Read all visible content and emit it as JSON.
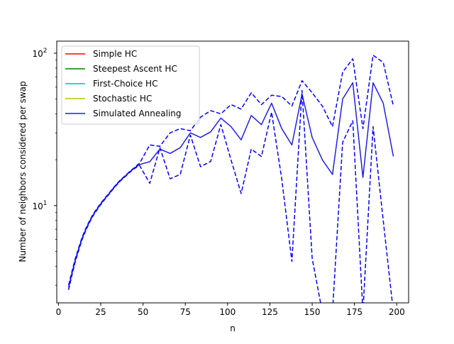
{
  "chart_data": {
    "type": "line",
    "title": "",
    "xlabel": "n",
    "ylabel": "Number of neighbors considered per swap",
    "xlim": [
      -1,
      207
    ],
    "ylim": [
      2.3,
      120
    ],
    "yscale": "log",
    "xticks": [
      0,
      25,
      50,
      75,
      100,
      125,
      150,
      175,
      200
    ],
    "xtick_labels": [
      "0",
      "25",
      "50",
      "75",
      "100",
      "125",
      "150",
      "175",
      "200"
    ],
    "yticks": [
      10,
      100
    ],
    "ytick_labels": [
      "10^1",
      "10^2"
    ],
    "ytick_base": "10",
    "ytick_exponents": [
      "1",
      "2"
    ],
    "grid": false,
    "legend_position": "upper-left",
    "series": [
      {
        "name": "Simple HC",
        "color": "#ff0000",
        "style": "solid",
        "x": [],
        "y": []
      },
      {
        "name": "Steepest Ascent HC",
        "color": "#008000",
        "style": "solid",
        "x": [],
        "y": []
      },
      {
        "name": "First-Choice HC",
        "color": "#00bfbf",
        "style": "solid",
        "x": [],
        "y": []
      },
      {
        "name": "Stochastic HC",
        "color": "#bfbf00",
        "style": "solid",
        "x": [],
        "y": []
      },
      {
        "name": "Simulated Annealing",
        "color": "#2020e0",
        "style": "solid",
        "x": [
          6,
          8,
          10,
          12,
          14,
          16,
          18,
          20,
          22,
          24,
          26,
          28,
          30,
          32,
          34,
          36,
          38,
          40,
          42,
          44,
          46,
          48,
          54,
          60,
          66,
          72,
          78,
          84,
          90,
          96,
          102,
          108,
          114,
          120,
          126,
          132,
          138,
          144,
          150,
          156,
          162,
          168,
          174,
          180,
          186,
          192,
          198
        ],
        "y": [
          2.9,
          3.6,
          4.4,
          5.2,
          6.1,
          6.9,
          7.7,
          8.5,
          9.2,
          9.9,
          10.6,
          11.3,
          12.0,
          12.8,
          13.6,
          14.4,
          15.1,
          15.8,
          16.6,
          17.3,
          18.0,
          18.6,
          19.4,
          23.5,
          22.0,
          24.0,
          30.0,
          28.0,
          30.5,
          37.5,
          33.0,
          27.0,
          39.0,
          34.0,
          47.0,
          32.0,
          25.0,
          54.0,
          28.0,
          20.0,
          16.0,
          50.0,
          64.0,
          15.3,
          64.0,
          47.0,
          21.0
        ]
      },
      {
        "name": "",
        "color": "#0000ff",
        "style": "dashed",
        "x": [
          6,
          8,
          10,
          12,
          14,
          16,
          18,
          20,
          22,
          24,
          26,
          28,
          30,
          32,
          34,
          36,
          38,
          40,
          42,
          44,
          46,
          48,
          54,
          60,
          66,
          72,
          78,
          84,
          90,
          96,
          102,
          108,
          114,
          120,
          126,
          132,
          138,
          144,
          150,
          156,
          162,
          168,
          174,
          180,
          186,
          192,
          198
        ],
        "y": [
          2.8,
          3.5,
          4.3,
          5.1,
          6.0,
          6.8,
          7.6,
          8.4,
          9.1,
          9.8,
          10.5,
          11.2,
          11.9,
          12.7,
          13.5,
          14.3,
          15.0,
          15.7,
          16.5,
          17.2,
          17.8,
          18.3,
          14.0,
          24.0,
          15.0,
          16.0,
          29.0,
          18.0,
          19.5,
          34.0,
          20.0,
          12.0,
          23.5,
          21.0,
          41.0,
          15.0,
          4.3,
          57.0,
          4.5,
          2.0,
          2.0,
          26.0,
          36.0,
          2.0,
          33.0,
          8.0,
          2.0
        ]
      },
      {
        "name": "",
        "color": "#0000ff",
        "style": "dashed",
        "x": [
          6,
          8,
          10,
          12,
          14,
          16,
          18,
          20,
          22,
          24,
          26,
          28,
          30,
          32,
          34,
          36,
          38,
          40,
          42,
          44,
          46,
          48,
          54,
          60,
          66,
          72,
          78,
          84,
          90,
          96,
          102,
          108,
          114,
          120,
          126,
          132,
          138,
          144,
          150,
          156,
          162,
          168,
          174,
          180,
          186,
          192,
          198
        ],
        "y": [
          3.0,
          3.7,
          4.5,
          5.3,
          6.2,
          7.0,
          7.8,
          8.6,
          9.3,
          10.0,
          10.7,
          11.4,
          12.1,
          12.9,
          13.7,
          14.5,
          15.2,
          15.9,
          16.7,
          17.4,
          18.2,
          19.0,
          25.0,
          24.5,
          30.0,
          32.0,
          31.0,
          38.0,
          42.0,
          40.0,
          46.0,
          43.0,
          55.0,
          46.0,
          53.0,
          52.0,
          45.0,
          66.0,
          55.0,
          45.0,
          33.0,
          75.0,
          92.0,
          32.0,
          97.0,
          87.0,
          45.0
        ]
      }
    ]
  }
}
